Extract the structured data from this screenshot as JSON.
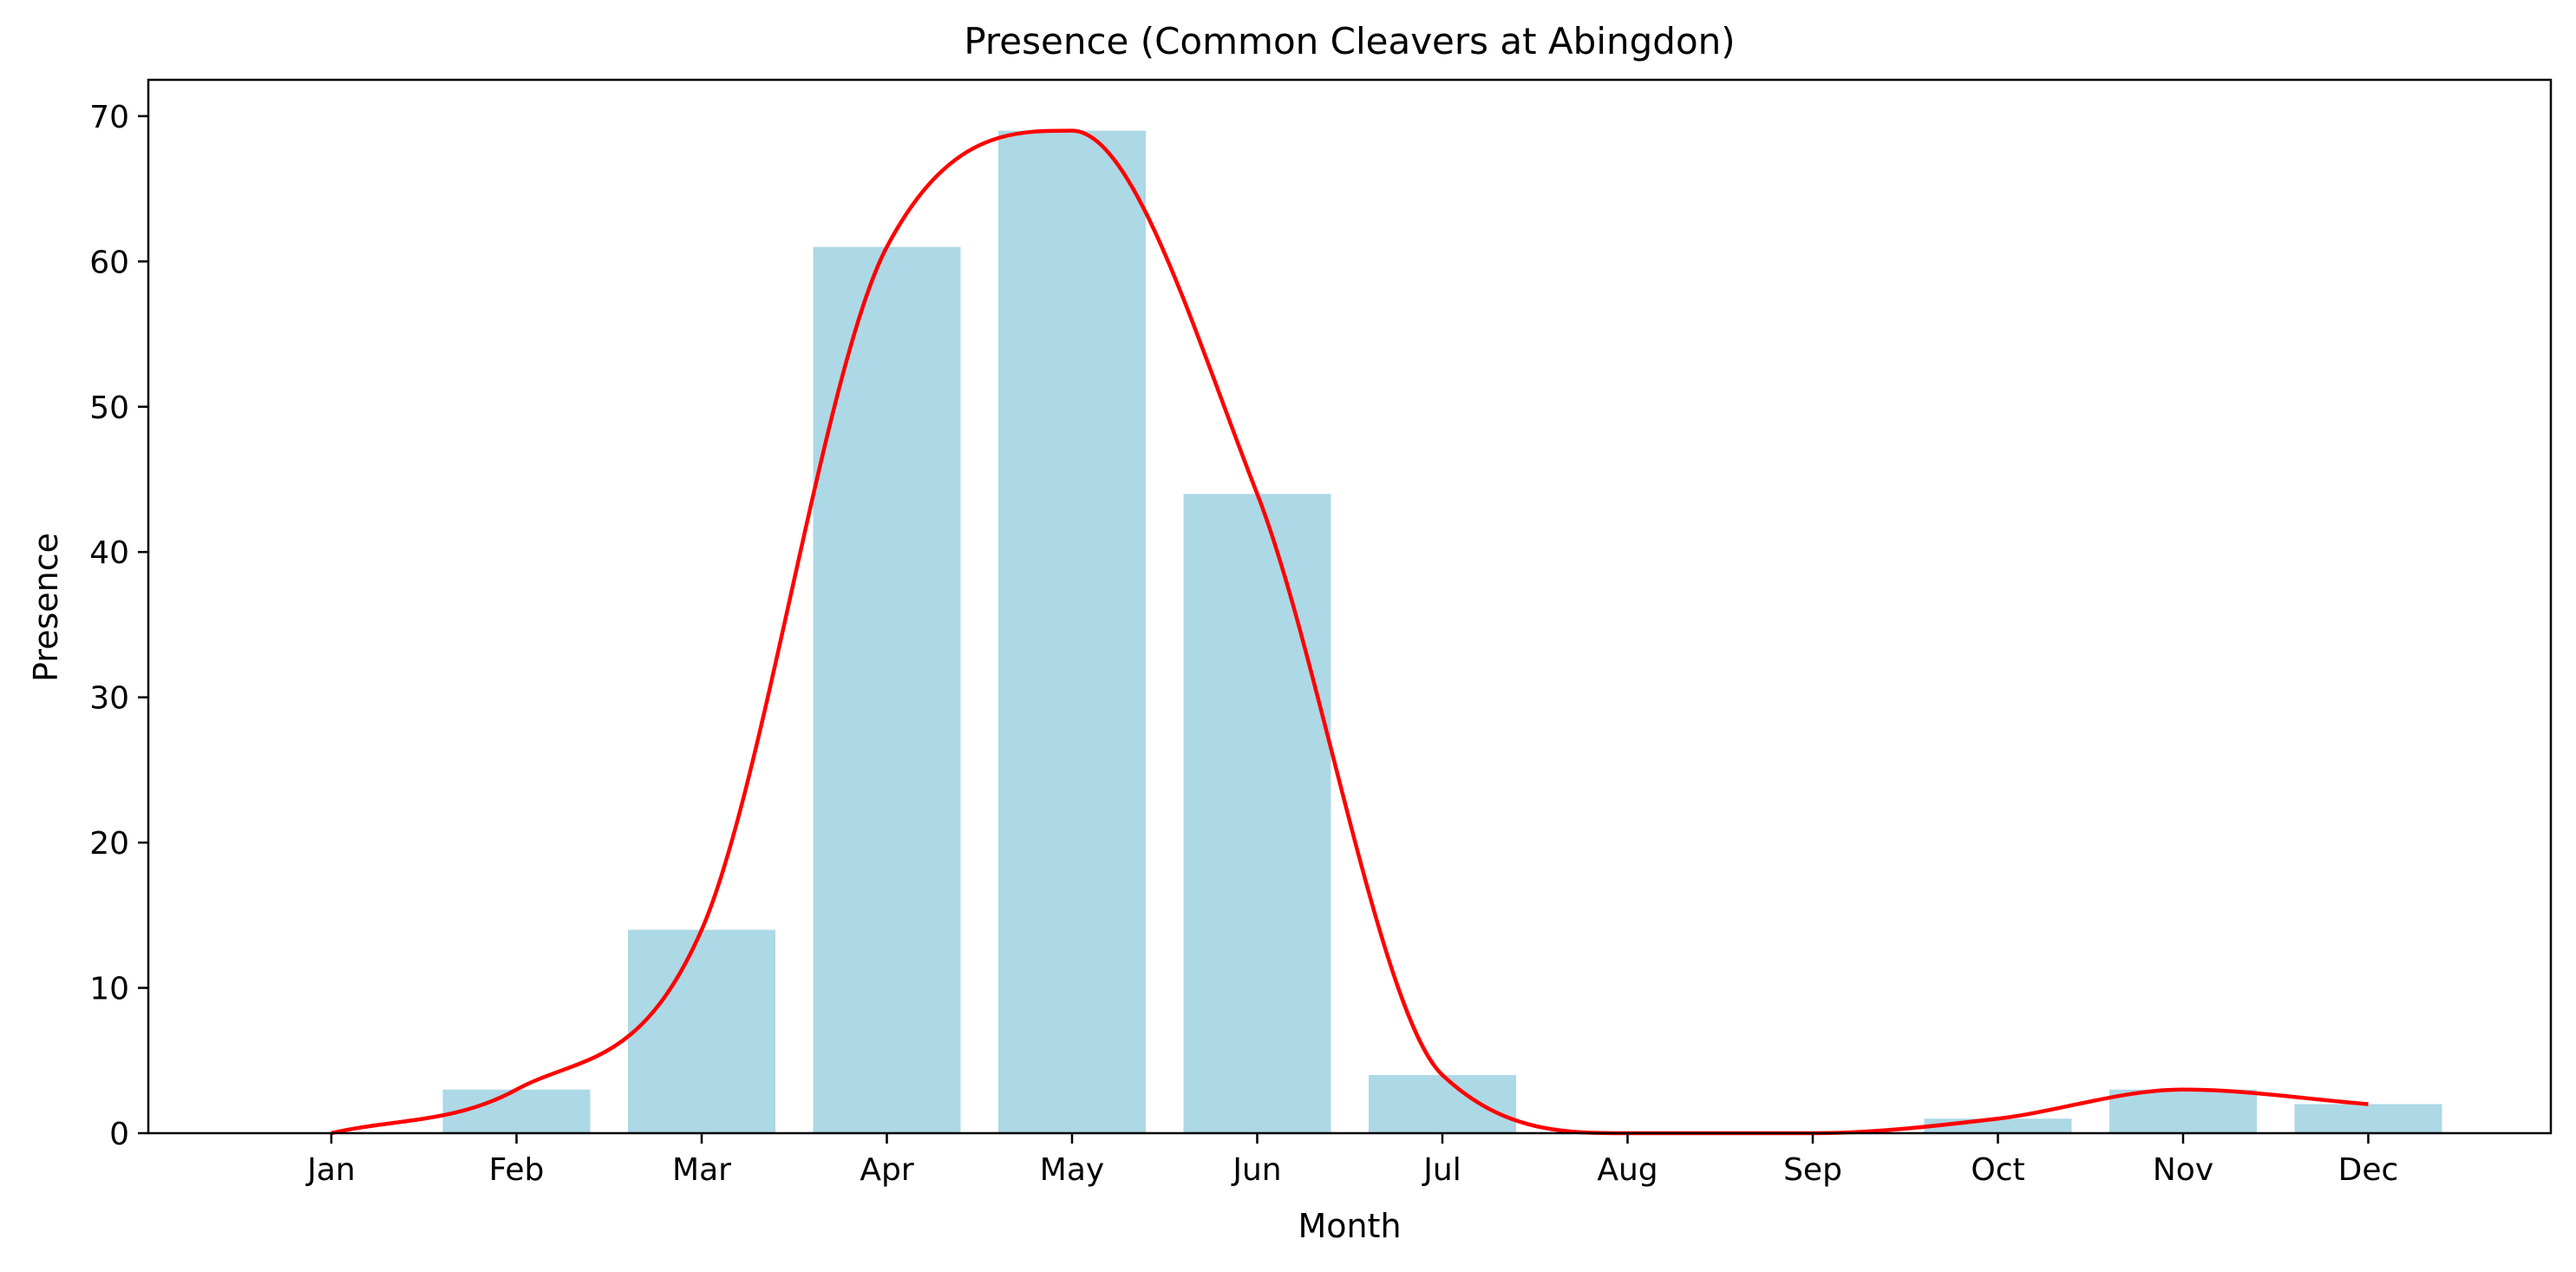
{
  "chart_data": {
    "type": "bar",
    "title": "Presence (Common Cleavers at Abingdon)",
    "xlabel": "Month",
    "ylabel": "Presence",
    "categories": [
      "Jan",
      "Feb",
      "Mar",
      "Apr",
      "May",
      "Jun",
      "Jul",
      "Aug",
      "Sep",
      "Oct",
      "Nov",
      "Dec"
    ],
    "values": [
      0,
      3,
      14,
      61,
      69,
      44,
      4,
      0,
      0,
      1,
      3,
      2
    ],
    "ylim": [
      0,
      72.5
    ],
    "yticks": [
      0,
      10,
      20,
      30,
      40,
      50,
      60,
      70
    ],
    "grid": false,
    "series": [
      {
        "kind": "bar",
        "color": "#add8e6",
        "values": [
          0,
          3,
          14,
          61,
          69,
          44,
          4,
          0,
          0,
          1,
          3,
          2
        ]
      },
      {
        "kind": "smooth-line",
        "color": "#ff0000",
        "values": [
          0,
          3,
          14,
          61,
          69,
          44,
          4,
          0,
          0,
          1,
          3,
          2
        ]
      }
    ]
  }
}
